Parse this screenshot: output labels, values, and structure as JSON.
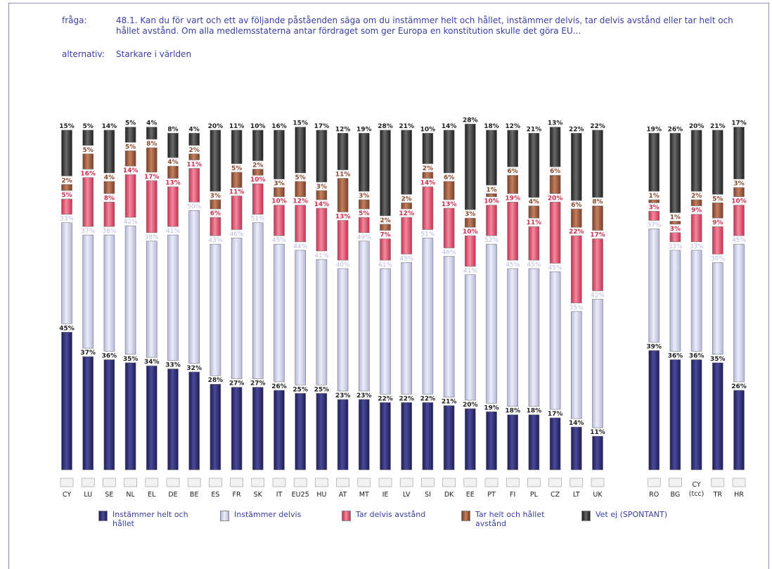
{
  "header": {
    "question_label": "fråga:",
    "question_text": "48.1. Kan du för vart och ett av följande påståenden säga om du instämmer helt och hållet, instämmer delvis, tar delvis avstånd eller tar helt och hållet avstånd. Om alla medlemsstaterna antar fördraget som ger Europa en konstitution skulle det göra EU...",
    "alternative_label": "alternativ:",
    "alternative_text": "Starkare i världen"
  },
  "colors": {
    "instammer_helt": "#2a2a6e",
    "instammer_delvis": "#c9cbe6",
    "tar_delvis": "#e2506a",
    "tar_helt": "#9a5a3e",
    "vet_ej": "#333333",
    "label_dark": "#222222",
    "label_light": "#b8bbe0",
    "label_red": "#d03050",
    "label_brown": "#8a4a2e"
  },
  "chart_data": {
    "type": "bar",
    "stacked": true,
    "unit": "%",
    "categories": [
      "CY",
      "LU",
      "SE",
      "NL",
      "EL",
      "DE",
      "BE",
      "ES",
      "FR",
      "SK",
      "IT",
      "EU25",
      "HU",
      "AT",
      "MT",
      "IE",
      "LV",
      "SI",
      "DK",
      "EE",
      "PT",
      "FI",
      "PL",
      "CZ",
      "LT",
      "UK",
      "RO",
      "BG",
      "CY (tcc)",
      "TR",
      "HR"
    ],
    "series": [
      {
        "name": "Instämmer helt och hållet",
        "values": [
          45,
          37,
          36,
          35,
          34,
          33,
          32,
          28,
          27,
          27,
          26,
          25,
          25,
          23,
          23,
          22,
          22,
          22,
          21,
          20,
          19,
          18,
          18,
          17,
          14,
          11,
          39,
          36,
          36,
          35,
          26
        ]
      },
      {
        "name": "Instämmer delvis",
        "values": [
          33,
          37,
          38,
          42,
          38,
          41,
          50,
          43,
          46,
          51,
          45,
          44,
          41,
          40,
          49,
          41,
          43,
          51,
          46,
          41,
          52,
          45,
          45,
          45,
          35,
          42,
          37,
          33,
          33,
          30,
          45
        ]
      },
      {
        "name": "Tar delvis avstånd",
        "values": [
          5,
          16,
          8,
          14,
          17,
          13,
          11,
          6,
          11,
          10,
          10,
          12,
          14,
          13,
          5,
          7,
          12,
          14,
          13,
          10,
          10,
          19,
          11,
          20,
          22,
          17,
          3,
          3,
          9,
          9,
          10
        ]
      },
      {
        "name": "Tar helt och hållet avstånd",
        "values": [
          2,
          5,
          4,
          5,
          8,
          4,
          2,
          3,
          5,
          2,
          3,
          5,
          3,
          11,
          3,
          2,
          2,
          2,
          6,
          3,
          1,
          6,
          4,
          6,
          6,
          8,
          1,
          1,
          2,
          5,
          3
        ]
      },
      {
        "name": "Vet ej (SPONTANT)",
        "values": [
          15,
          5,
          14,
          5,
          4,
          8,
          4,
          20,
          11,
          10,
          16,
          15,
          17,
          12,
          19,
          28,
          21,
          10,
          14,
          28,
          18,
          12,
          21,
          13,
          22,
          22,
          19,
          26,
          20,
          21,
          17
        ]
      }
    ],
    "legend_placement": "bottom"
  },
  "legend": [
    {
      "label": "Instämmer helt och hållet",
      "color": "#2a2a6e"
    },
    {
      "label": "Instämmer delvis",
      "color": "#c9cbe6"
    },
    {
      "label": "Tar delvis avstånd",
      "color": "#e2506a"
    },
    {
      "label": "Tar helt och hållet avstånd",
      "color": "#9a5a3e"
    },
    {
      "label": "Vet ej (SPONTANT)",
      "color": "#333333"
    }
  ]
}
